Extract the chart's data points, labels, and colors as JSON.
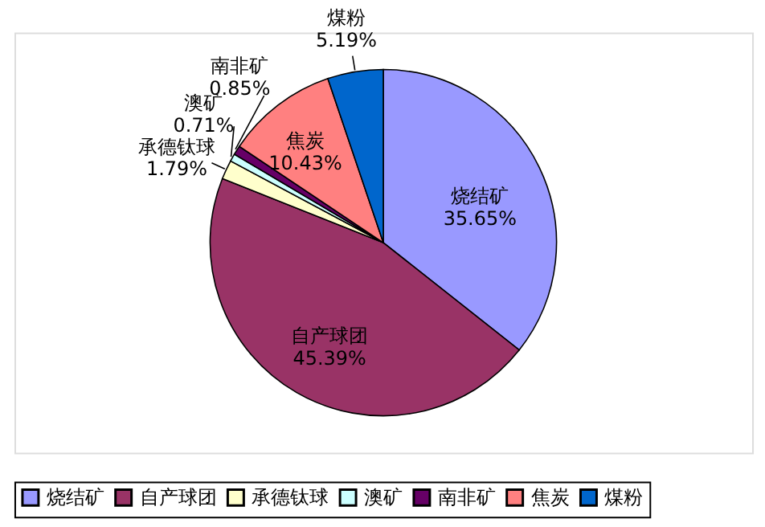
{
  "chart_data": {
    "type": "pie",
    "categories": [
      "烧结矿",
      "自产球团",
      "承德钛球",
      "澳矿",
      "南非矿",
      "焦炭",
      "煤粉"
    ],
    "values": [
      35.65,
      45.39,
      1.79,
      0.71,
      0.85,
      10.43,
      5.19
    ],
    "colors": [
      "#9999ff",
      "#993366",
      "#ffffcc",
      "#ccffff",
      "#660066",
      "#ff8080",
      "#0066cc"
    ],
    "value_labels": [
      "35.65%",
      "45.39%",
      "1.79%",
      "0.71%",
      "0.85%",
      "10.43%",
      "5.19%"
    ],
    "legend": "bottom"
  }
}
